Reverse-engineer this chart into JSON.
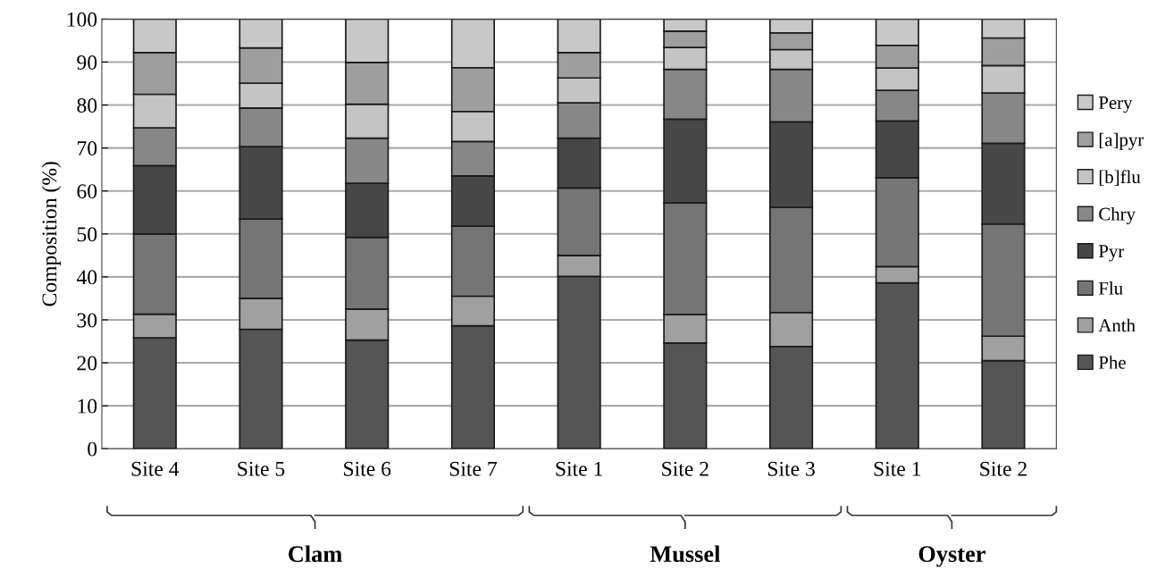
{
  "chart_data": {
    "type": "bar",
    "stacked": true,
    "ylabel": "Composition (%)",
    "categories": [
      "Site 4",
      "Site 5",
      "Site 6",
      "Site 7",
      "Site 1",
      "Site 2",
      "Site 3",
      "Site 1",
      "Site 2"
    ],
    "series": [
      {
        "name": "Phe",
        "color": "#555555",
        "values": [
          25.8,
          27.8,
          25.3,
          28.6,
          40.1,
          24.6,
          23.8,
          38.6,
          20.5
        ]
      },
      {
        "name": "Anth",
        "color": "#a0a0a0",
        "values": [
          5.5,
          7.2,
          7.2,
          6.9,
          4.9,
          6.6,
          7.9,
          3.8,
          5.7
        ]
      },
      {
        "name": "Flu",
        "color": "#757575",
        "values": [
          18.7,
          18.5,
          16.7,
          16.3,
          15.7,
          26.0,
          24.5,
          20.7,
          26.1
        ]
      },
      {
        "name": "Pyr",
        "color": "#474747",
        "values": [
          15.9,
          16.8,
          12.6,
          11.7,
          11.6,
          19.5,
          19.9,
          13.2,
          18.8
        ]
      },
      {
        "name": "Chry",
        "color": "#878787",
        "values": [
          8.8,
          9.0,
          10.5,
          8.0,
          8.2,
          11.6,
          12.2,
          7.1,
          11.7
        ]
      },
      {
        "name": "[b]flu",
        "color": "#c4c4c4",
        "values": [
          7.8,
          5.8,
          7.9,
          7.0,
          5.8,
          5.1,
          4.6,
          5.2,
          6.4
        ]
      },
      {
        "name": "[a]pyr",
        "color": "#9e9e9e",
        "values": [
          9.7,
          8.2,
          9.7,
          10.2,
          5.9,
          3.8,
          3.9,
          5.3,
          6.4
        ]
      },
      {
        "name": "Pery",
        "color": "#c8c8c8",
        "values": [
          7.8,
          6.7,
          10.1,
          11.3,
          7.8,
          2.8,
          3.2,
          6.1,
          4.4
        ]
      }
    ],
    "ylim": [
      0,
      100
    ],
    "yticks": [
      0,
      10,
      20,
      30,
      40,
      50,
      60,
      70,
      80,
      90,
      100
    ],
    "grid": "y",
    "legend": "right",
    "annotations": [
      "Clam",
      "Mussel",
      "Oyster"
    ]
  }
}
